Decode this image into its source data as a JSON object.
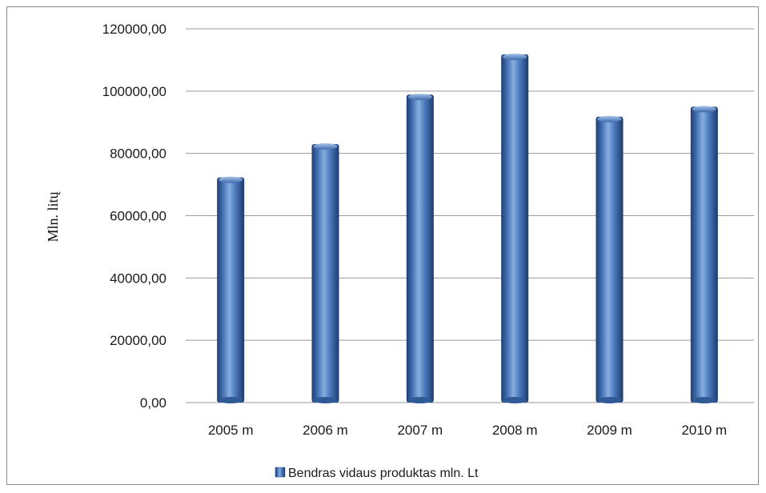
{
  "chart_data": {
    "type": "bar",
    "categories": [
      "2005 m",
      "2006 m",
      "2007 m",
      "2008 m",
      "2009 m",
      "2010 m"
    ],
    "series": [
      {
        "name": "Bendras vidaus produktas mln. Lt",
        "values": [
          72300,
          83000,
          98900,
          111800,
          91800,
          95000
        ],
        "color": "#4a78bd"
      }
    ],
    "ylabel": "Mln. litų",
    "ylim": [
      0,
      120000
    ],
    "yticks": [
      0,
      20000,
      40000,
      60000,
      80000,
      100000,
      120000
    ],
    "ytick_labels": [
      "0,00",
      "20000,00",
      "40000,00",
      "60000,00",
      "80000,00",
      "100000,00",
      "120000,00"
    ],
    "grid": true,
    "legend": "bottom"
  }
}
